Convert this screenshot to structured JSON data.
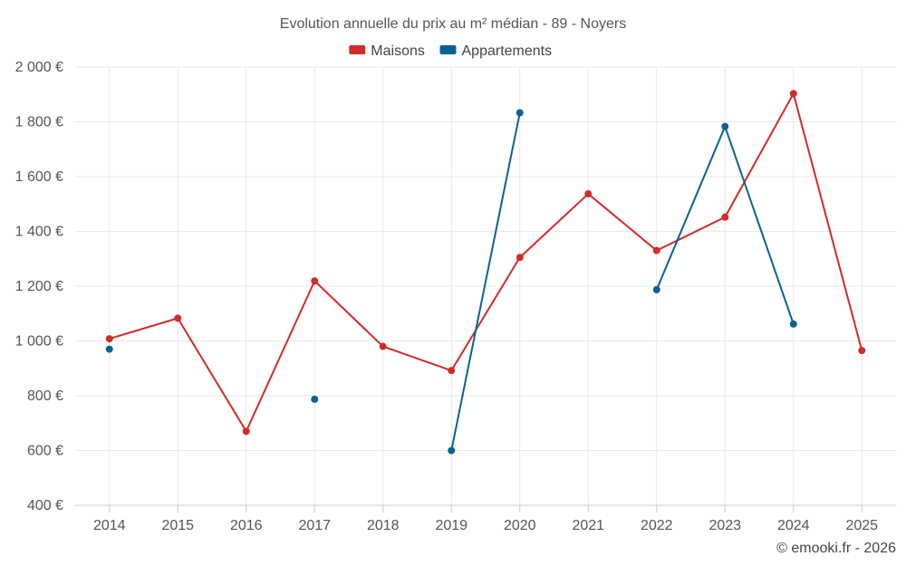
{
  "chart_data": {
    "type": "line",
    "title": "Evolution annuelle du prix au m² médian - 89 - Noyers",
    "categories": [
      "2014",
      "2015",
      "2016",
      "2017",
      "2018",
      "2019",
      "2020",
      "2021",
      "2022",
      "2023",
      "2024",
      "2025"
    ],
    "y_tick_labels": [
      "400 €",
      "600 €",
      "800 €",
      "1 000 €",
      "1 200 €",
      "1 400 €",
      "1 600 €",
      "1 800 €",
      "2 000 €"
    ],
    "y_ticks": [
      400,
      600,
      800,
      1000,
      1200,
      1400,
      1600,
      1800,
      2000
    ],
    "ylim": [
      400,
      2000
    ],
    "grid": true,
    "legend_position": "top-center",
    "series": [
      {
        "name": "Maisons",
        "color": "#d42a2a",
        "values": [
          1008,
          1083,
          670,
          1219,
          980,
          892,
          1305,
          1537,
          1330,
          1452,
          1903,
          965
        ]
      },
      {
        "name": "Appartements",
        "color": "#0a6294",
        "values": [
          970,
          null,
          null,
          787,
          null,
          600,
          1833,
          null,
          1187,
          1783,
          1062,
          null
        ]
      }
    ]
  },
  "credit": "© emooki.fr - 2026"
}
